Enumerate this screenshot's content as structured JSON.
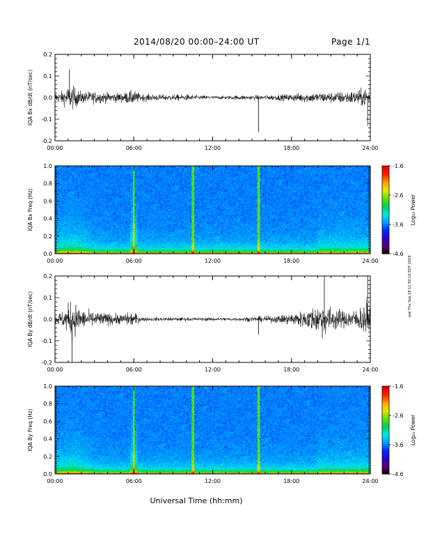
{
  "header": {
    "title": "2014/08/20  00:00–24:00 UT",
    "page": "Page 1/1"
  },
  "side_note": "wal Thu Sep 18 11:50:16 EDT 2019",
  "colors": {
    "waveform": "#000000",
    "colormap": [
      "#000000",
      "#5a0078",
      "#2a00c8",
      "#0028ff",
      "#00a0ff",
      "#00e8e8",
      "#00d060",
      "#60e000",
      "#e8e800",
      "#ffa000",
      "#ff2000",
      "#e00000"
    ]
  },
  "chart_data": [
    {
      "type": "line",
      "name": "bx-waveform",
      "ylabel": "IQA Bx dB/dt (nT/sec)",
      "xlim": [
        0,
        24
      ],
      "ylim": [
        -0.2,
        0.2
      ],
      "yticks": [
        "0.2",
        "0.1",
        "0.0",
        "-0.1",
        "-0.2"
      ],
      "xticks": [
        "00:00",
        "06:00",
        "12:00",
        "18:00",
        "24:00"
      ],
      "amplitude_envelope": {
        "hours": [
          0,
          0.5,
          1,
          1.3,
          1.6,
          2,
          3,
          4,
          5,
          6,
          6.5,
          7,
          8,
          9,
          10,
          11,
          12,
          13,
          14,
          15,
          16,
          17,
          18,
          19,
          20,
          21,
          22,
          23,
          23.7,
          24
        ],
        "amplitude": [
          0.04,
          0.05,
          0.09,
          0.1,
          0.08,
          0.05,
          0.05,
          0.04,
          0.04,
          0.06,
          0.03,
          0.03,
          0.025,
          0.025,
          0.025,
          0.02,
          0.015,
          0.015,
          0.02,
          0.02,
          0.02,
          0.025,
          0.03,
          0.04,
          0.04,
          0.045,
          0.05,
          0.06,
          0.08,
          0.06
        ]
      },
      "spikes": [
        {
          "x": 15.5,
          "y": -0.16
        },
        {
          "x": 1.1,
          "y": 0.13
        },
        {
          "x": 23.8,
          "y": -0.13
        }
      ]
    },
    {
      "type": "heatmap",
      "name": "bx-spectrogram",
      "ylabel": "IQA Bx Freq (Hz)",
      "xlim": [
        0,
        24
      ],
      "ylim": [
        0,
        1.0
      ],
      "yticks": [
        "1.0",
        "0.8",
        "0.6",
        "0.4",
        "0.2",
        "0.0"
      ],
      "xticks": [
        "00:00",
        "06:00",
        "12:00",
        "18:00",
        "24:00"
      ],
      "colorbar": {
        "label": "Log₁₀ Power",
        "ticks": [
          "-1.6",
          "-2.6",
          "-3.6",
          "-4.6"
        ],
        "range": [
          -4.6,
          -1.6
        ]
      },
      "bright_lines": [
        6.0,
        10.5,
        15.5
      ]
    },
    {
      "type": "line",
      "name": "by-waveform",
      "ylabel": "IQA By dB/dt (nT/sec)",
      "xlim": [
        0,
        24
      ],
      "ylim": [
        -0.2,
        0.2
      ],
      "yticks": [
        "0.2",
        "0.1",
        "0.0",
        "-0.1",
        "-0.2"
      ],
      "xticks": [
        "00:00",
        "06:00",
        "12:00",
        "18:00",
        "24:00"
      ],
      "amplitude_envelope": {
        "hours": [
          0,
          0.5,
          1,
          1.3,
          1.6,
          2,
          3,
          4,
          5,
          6,
          6.5,
          7,
          8,
          9,
          10,
          11,
          12,
          13,
          14,
          15,
          16,
          17,
          18,
          19,
          20,
          20.5,
          21,
          22,
          23,
          23.7,
          24
        ],
        "amplitude": [
          0.05,
          0.06,
          0.12,
          0.17,
          0.12,
          0.08,
          0.06,
          0.05,
          0.04,
          0.06,
          0.02,
          0.015,
          0.015,
          0.015,
          0.015,
          0.015,
          0.015,
          0.015,
          0.015,
          0.02,
          0.025,
          0.03,
          0.05,
          0.07,
          0.12,
          0.14,
          0.1,
          0.07,
          0.08,
          0.15,
          0.08
        ]
      },
      "spikes": [
        {
          "x": 1.3,
          "y": -0.2
        },
        {
          "x": 20.5,
          "y": 0.2
        },
        {
          "x": 23.8,
          "y": 0.2
        },
        {
          "x": 15.5,
          "y": -0.07
        }
      ]
    },
    {
      "type": "heatmap",
      "name": "by-spectrogram",
      "ylabel": "IQA By Freq (Hz)",
      "xlim": [
        0,
        24
      ],
      "ylim": [
        0,
        1.0
      ],
      "yticks": [
        "1.0",
        "0.8",
        "0.6",
        "0.4",
        "0.2",
        "0.0"
      ],
      "xticks": [
        "00:00",
        "06:00",
        "12:00",
        "18:00",
        "24:00"
      ],
      "colorbar": {
        "label": "Log₁₀ Power",
        "ticks": [
          "-1.6",
          "-2.6",
          "-3.6",
          "-4.6"
        ],
        "range": [
          -4.6,
          -1.6
        ]
      },
      "bright_lines": [
        6.0,
        10.5,
        15.5
      ]
    }
  ],
  "xlabel": "Universal Time (hh:mm)"
}
